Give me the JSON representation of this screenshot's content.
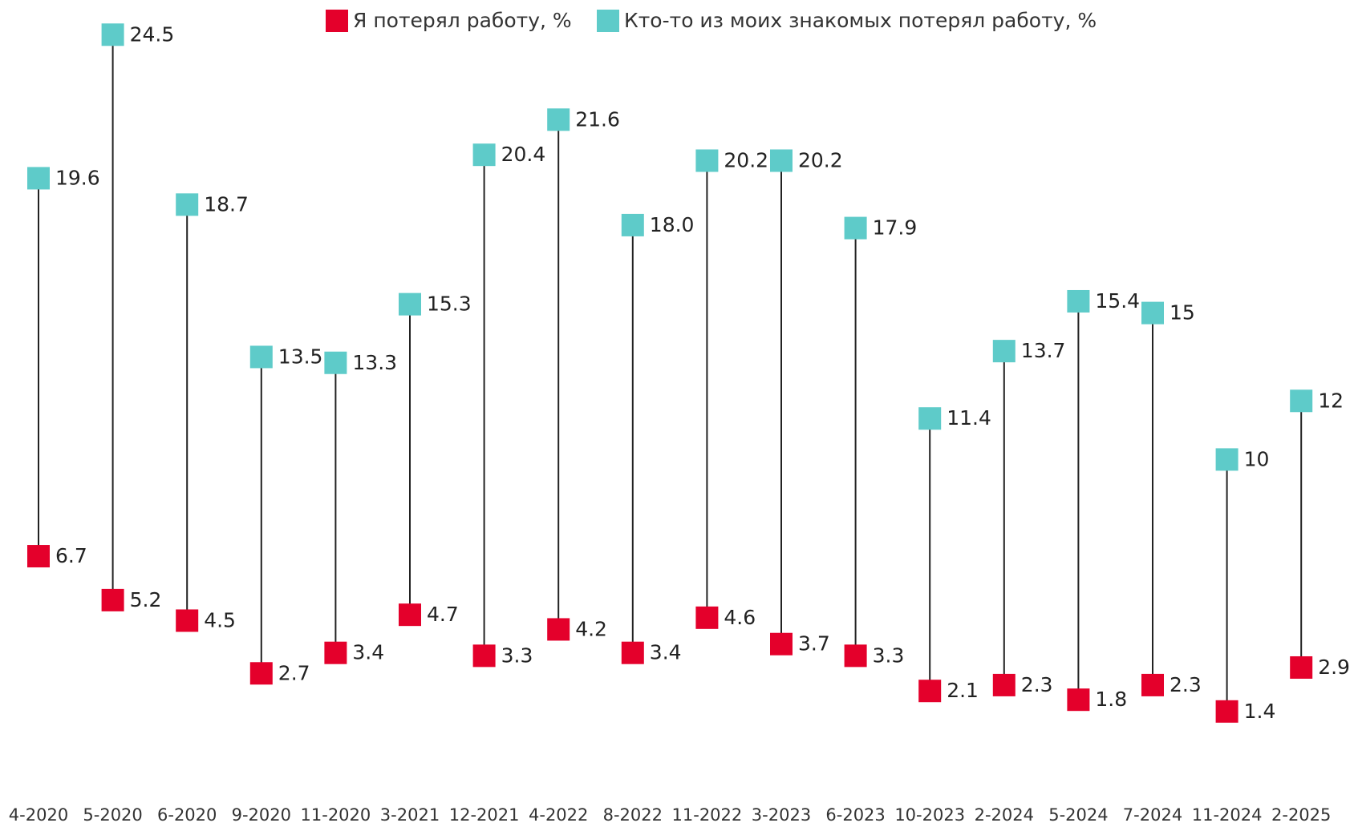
{
  "chart_data": {
    "type": "dumbbell",
    "categories": [
      "4-2020",
      "5-2020",
      "6-2020",
      "9-2020",
      "11-2020",
      "3-2021",
      "12-2021",
      "4-2022",
      "8-2022",
      "11-2022",
      "3-2023",
      "6-2023",
      "10-2023",
      "2-2024",
      "5-2024",
      "7-2024",
      "11-2024",
      "2-2025"
    ],
    "series": [
      {
        "name": "Я потерял работу, %",
        "color": "#e4002b",
        "values": [
          6.7,
          5.2,
          4.5,
          2.7,
          3.4,
          4.7,
          3.3,
          4.2,
          3.4,
          4.6,
          3.7,
          3.3,
          2.1,
          2.3,
          1.8,
          2.3,
          1.4,
          2.9
        ]
      },
      {
        "name": "Кто-то из моих знакомых потерял работу, %",
        "color": "#5ecbc9",
        "values": [
          19.6,
          24.5,
          18.7,
          13.5,
          13.3,
          15.3,
          20.4,
          21.6,
          18.0,
          20.2,
          20.2,
          17.9,
          11.4,
          13.7,
          15.4,
          15,
          10,
          12
        ],
        "value_labels": [
          "19.6",
          "24.5",
          "18.7",
          "13.5",
          "13.3",
          "15.3",
          "20.4",
          "21.6",
          "18.0",
          "20.2",
          "20.2",
          "17.9",
          "11.4",
          "13.7",
          "15.4",
          "15",
          "10",
          "12"
        ]
      }
    ],
    "ylim": [
      0,
      25
    ],
    "legend": "top"
  }
}
